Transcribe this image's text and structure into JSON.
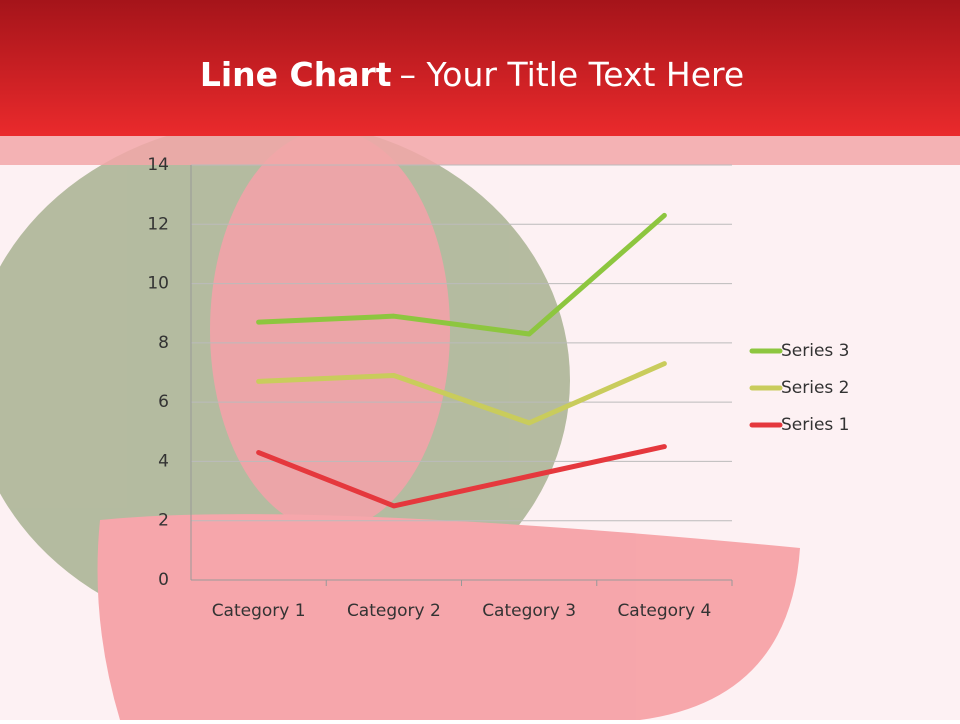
{
  "header": {
    "title_bold": "Line Chart",
    "title_rest": "– Your Title Text Here"
  },
  "chart_data": {
    "type": "line",
    "stacked": true,
    "categories": [
      "Category 1",
      "Category 2",
      "Category 3",
      "Category 4"
    ],
    "series": [
      {
        "name": "Series 1",
        "color": "#e5383d",
        "values": [
          4.3,
          2.5,
          3.5,
          4.5
        ]
      },
      {
        "name": "Series 2",
        "color": "#c9cc5c",
        "values": [
          2.4,
          4.4,
          1.8,
          2.8
        ]
      },
      {
        "name": "Series 3",
        "color": "#8dc63f",
        "values": [
          2,
          2,
          3,
          5
        ]
      }
    ],
    "ylim": [
      0,
      14
    ],
    "yticks": [
      0,
      2,
      4,
      6,
      8,
      10,
      12,
      14
    ],
    "grid": true,
    "legend": "right"
  }
}
